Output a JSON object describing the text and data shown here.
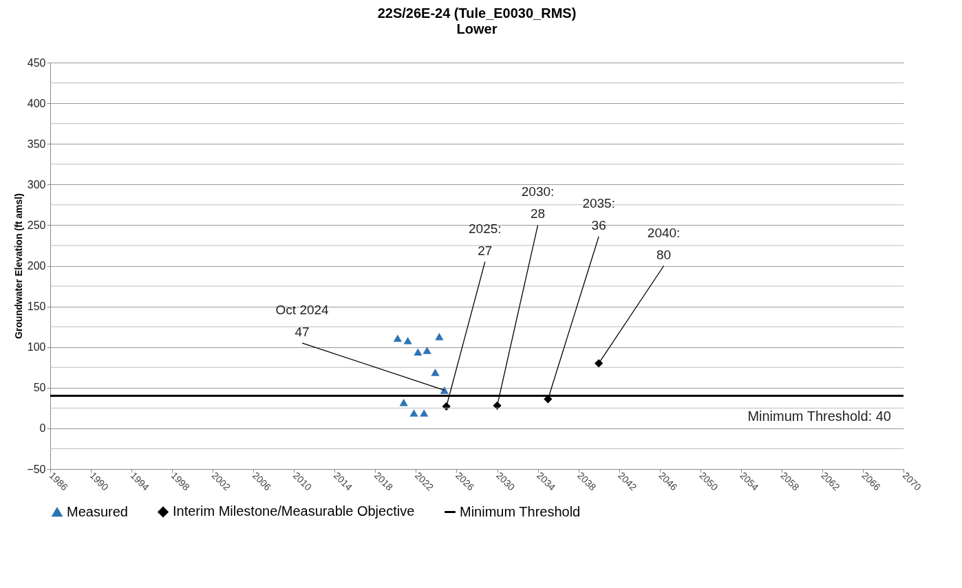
{
  "chart_data": {
    "type": "scatter",
    "title": "22S/26E-24 (Tule_E0030_RMS)",
    "subtitle": "Lower",
    "ylabel": "Groundwater Elevation (ft amsl)",
    "xlim": [
      1986,
      2070
    ],
    "xticks": [
      1986,
      1990,
      1994,
      1998,
      2002,
      2006,
      2010,
      2014,
      2018,
      2022,
      2026,
      2030,
      2034,
      2038,
      2042,
      2046,
      2050,
      2054,
      2058,
      2062,
      2066,
      2070
    ],
    "ylim": [
      -50,
      450
    ],
    "yticks": [
      -50,
      {
        "value": -25,
        "label": null
      },
      0,
      {
        "value": 25,
        "label": null
      },
      50,
      {
        "value": 75,
        "label": null
      },
      100,
      {
        "value": 125,
        "label": null
      },
      150,
      {
        "value": 175,
        "label": null
      },
      200,
      {
        "value": 225,
        "label": null
      },
      250,
      {
        "value": 275,
        "label": null
      },
      300,
      {
        "value": 325,
        "label": null
      },
      350,
      {
        "value": 375,
        "label": null
      },
      400,
      {
        "value": 425,
        "label": null
      },
      450
    ],
    "grid": "y",
    "legend": "bottom",
    "series": [
      {
        "name": "Measured",
        "type": "scatter",
        "marker": "triangle",
        "color": "#2e75b6",
        "x": [
          2020.2,
          2020.8,
          2021.2,
          2021.8,
          2022.2,
          2022.8,
          2023.1,
          2023.9,
          2024.3,
          2024.8
        ],
        "values": [
          111,
          32,
          108,
          19,
          94,
          19,
          96,
          69,
          113,
          47
        ],
        "value_labels": [
          null,
          null,
          null,
          null,
          null,
          null,
          null,
          null,
          null,
          "47"
        ]
      },
      {
        "name": "Interim Milestone/Measurable Objective",
        "type": "scatter",
        "marker": "diamond",
        "color": "#000000",
        "x": [
          2025,
          2030,
          2035,
          2040
        ],
        "values": [
          27,
          28,
          36,
          80
        ],
        "value_labels": [
          "27",
          "28",
          "36",
          "80"
        ]
      }
    ],
    "ref_lines": [
      {
        "axis": "y",
        "value": 40,
        "label": "Minimum Threshold",
        "color": "#000000"
      }
    ],
    "annotations": [
      "Oct 2024",
      "2025:",
      "2030:",
      "2035:",
      "2040:",
      {
        "text": "Minimum Threshold: 40",
        "y": 40
      }
    ]
  }
}
